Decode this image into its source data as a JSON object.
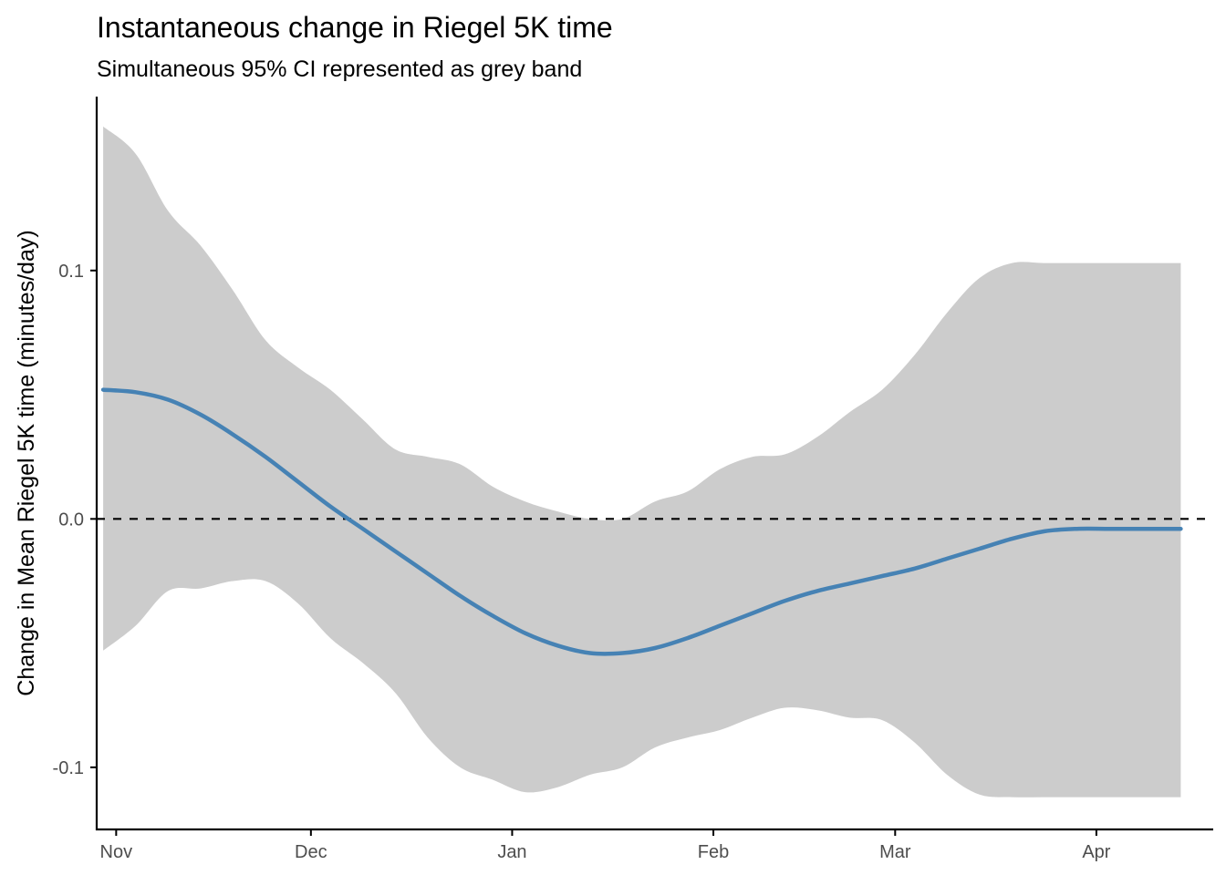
{
  "chart_data": {
    "type": "line",
    "title": "Instantaneous change in Riegel 5K time",
    "subtitle": "Simultaneous 95% CI represented as grey band",
    "xlabel": "",
    "ylabel": "Change in Mean Riegel 5K time (minutes/day)",
    "xlim": [
      "2021-10-29",
      "2022-04-19"
    ],
    "ylim": [
      -0.125,
      0.17
    ],
    "x_ticks": [
      {
        "label": "Nov",
        "date": "2021-11-01"
      },
      {
        "label": "Dec",
        "date": "2021-12-01"
      },
      {
        "label": "Jan",
        "date": "2022-01-01"
      },
      {
        "label": "Feb",
        "date": "2022-02-01"
      },
      {
        "label": "Mar",
        "date": "2022-03-01"
      },
      {
        "label": "Apr",
        "date": "2022-04-01"
      }
    ],
    "y_ticks": [
      {
        "label": "0.1",
        "value": 0.1
      },
      {
        "label": "0.0",
        "value": 0.0
      },
      {
        "label": "-0.1",
        "value": -0.1
      }
    ],
    "reference_line": {
      "y": 0.0,
      "style": "dashed",
      "color": "#000000"
    },
    "grid": false,
    "colors": {
      "line": "#4682b4",
      "band": "#cccccc",
      "axis": "#000000",
      "tick_text": "#4d4d4d"
    },
    "series": [
      {
        "x": [
          "2021-10-30",
          "2021-11-04",
          "2021-11-09",
          "2021-11-14",
          "2021-11-19",
          "2021-11-24",
          "2021-11-29",
          "2021-12-04",
          "2021-12-09",
          "2021-12-14",
          "2021-12-19",
          "2021-12-24",
          "2021-12-29",
          "2022-01-03",
          "2022-01-08",
          "2022-01-13",
          "2022-01-18",
          "2022-01-23",
          "2022-01-28",
          "2022-02-02",
          "2022-02-07",
          "2022-02-12",
          "2022-02-17",
          "2022-02-22",
          "2022-02-27",
          "2022-03-04",
          "2022-03-09",
          "2022-03-14",
          "2022-03-19",
          "2022-03-24",
          "2022-03-29",
          "2022-04-03",
          "2022-04-08",
          "2022-04-14"
        ],
        "y": [
          0.052,
          0.051,
          0.048,
          0.042,
          0.034,
          0.025,
          0.015,
          0.005,
          -0.004,
          -0.013,
          -0.022,
          -0.031,
          -0.039,
          -0.046,
          -0.051,
          -0.054,
          -0.054,
          -0.052,
          -0.048,
          -0.043,
          -0.038,
          -0.033,
          -0.029,
          -0.026,
          -0.023,
          -0.02,
          -0.016,
          -0.012,
          -0.008,
          -0.005,
          -0.004,
          -0.004,
          -0.004,
          -0.004
        ],
        "ci_upper": [
          0.158,
          0.147,
          0.124,
          0.11,
          0.092,
          0.072,
          0.061,
          0.052,
          0.04,
          0.028,
          0.025,
          0.022,
          0.013,
          0.007,
          0.003,
          0.0,
          0.0,
          0.007,
          0.011,
          0.02,
          0.025,
          0.026,
          0.033,
          0.043,
          0.052,
          0.066,
          0.083,
          0.097,
          0.103,
          0.103,
          0.103,
          0.103,
          0.103,
          0.103
        ],
        "ci_lower": [
          -0.053,
          -0.043,
          -0.029,
          -0.028,
          -0.025,
          -0.025,
          -0.034,
          -0.048,
          -0.058,
          -0.07,
          -0.088,
          -0.1,
          -0.105,
          -0.11,
          -0.108,
          -0.103,
          -0.1,
          -0.092,
          -0.088,
          -0.085,
          -0.08,
          -0.076,
          -0.077,
          -0.08,
          -0.081,
          -0.09,
          -0.103,
          -0.111,
          -0.112,
          -0.112,
          -0.112,
          -0.112,
          -0.112,
          -0.112
        ]
      }
    ]
  }
}
